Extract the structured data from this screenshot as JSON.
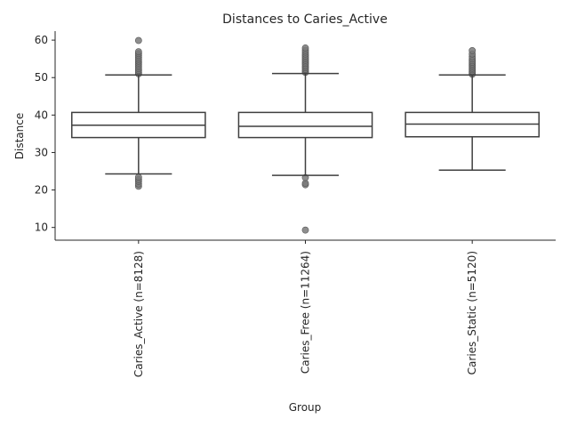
{
  "chart_data": {
    "type": "box",
    "title": "Distances to Caries_Active",
    "xlabel": "Group",
    "ylabel": "Distance",
    "ylim": [
      6.6,
      62.4
    ],
    "yticks": [
      10,
      20,
      30,
      40,
      50,
      60
    ],
    "grid": false,
    "legend": "none",
    "categories": [
      "Caries_Active (n=8128)",
      "Caries_Free (n=11264)",
      "Caries_Static (n=5120)"
    ],
    "boxes": [
      {
        "name": "Caries_Active (n=8128)",
        "whisker_low": 24.3,
        "q1": 34.0,
        "median": 37.3,
        "q3": 40.7,
        "whisker_high": 50.7,
        "outliers": [
          21.0,
          21.6,
          22.3,
          22.8,
          23.4,
          51.0,
          51.4,
          51.9,
          52.4,
          52.9,
          53.4,
          53.9,
          54.4,
          54.9,
          55.4,
          55.9,
          56.4,
          56.9,
          59.9
        ]
      },
      {
        "name": "Caries_Free (n=11264)",
        "whisker_low": 23.9,
        "q1": 34.0,
        "median": 37.0,
        "q3": 40.7,
        "whisker_high": 51.1,
        "outliers": [
          9.3,
          21.4,
          21.8,
          23.3,
          51.4,
          51.8,
          52.2,
          52.6,
          53.0,
          53.4,
          53.8,
          54.2,
          54.6,
          55.0,
          55.4,
          55.8,
          56.3,
          56.8,
          57.3,
          57.9
        ]
      },
      {
        "name": "Caries_Static (n=5120)",
        "whisker_low": 25.3,
        "q1": 34.2,
        "median": 37.6,
        "q3": 40.7,
        "whisker_high": 50.7,
        "outliers": [
          50.9,
          51.3,
          51.7,
          52.1,
          52.5,
          52.9,
          53.3,
          53.7,
          54.1,
          54.5,
          55.0,
          55.6,
          56.3,
          57.2
        ]
      }
    ],
    "colors": {
      "box_edge": "#3f3f3f",
      "box_fill": "#ffffff",
      "outlier": "#7a7a7a",
      "axis": "#262626"
    }
  }
}
